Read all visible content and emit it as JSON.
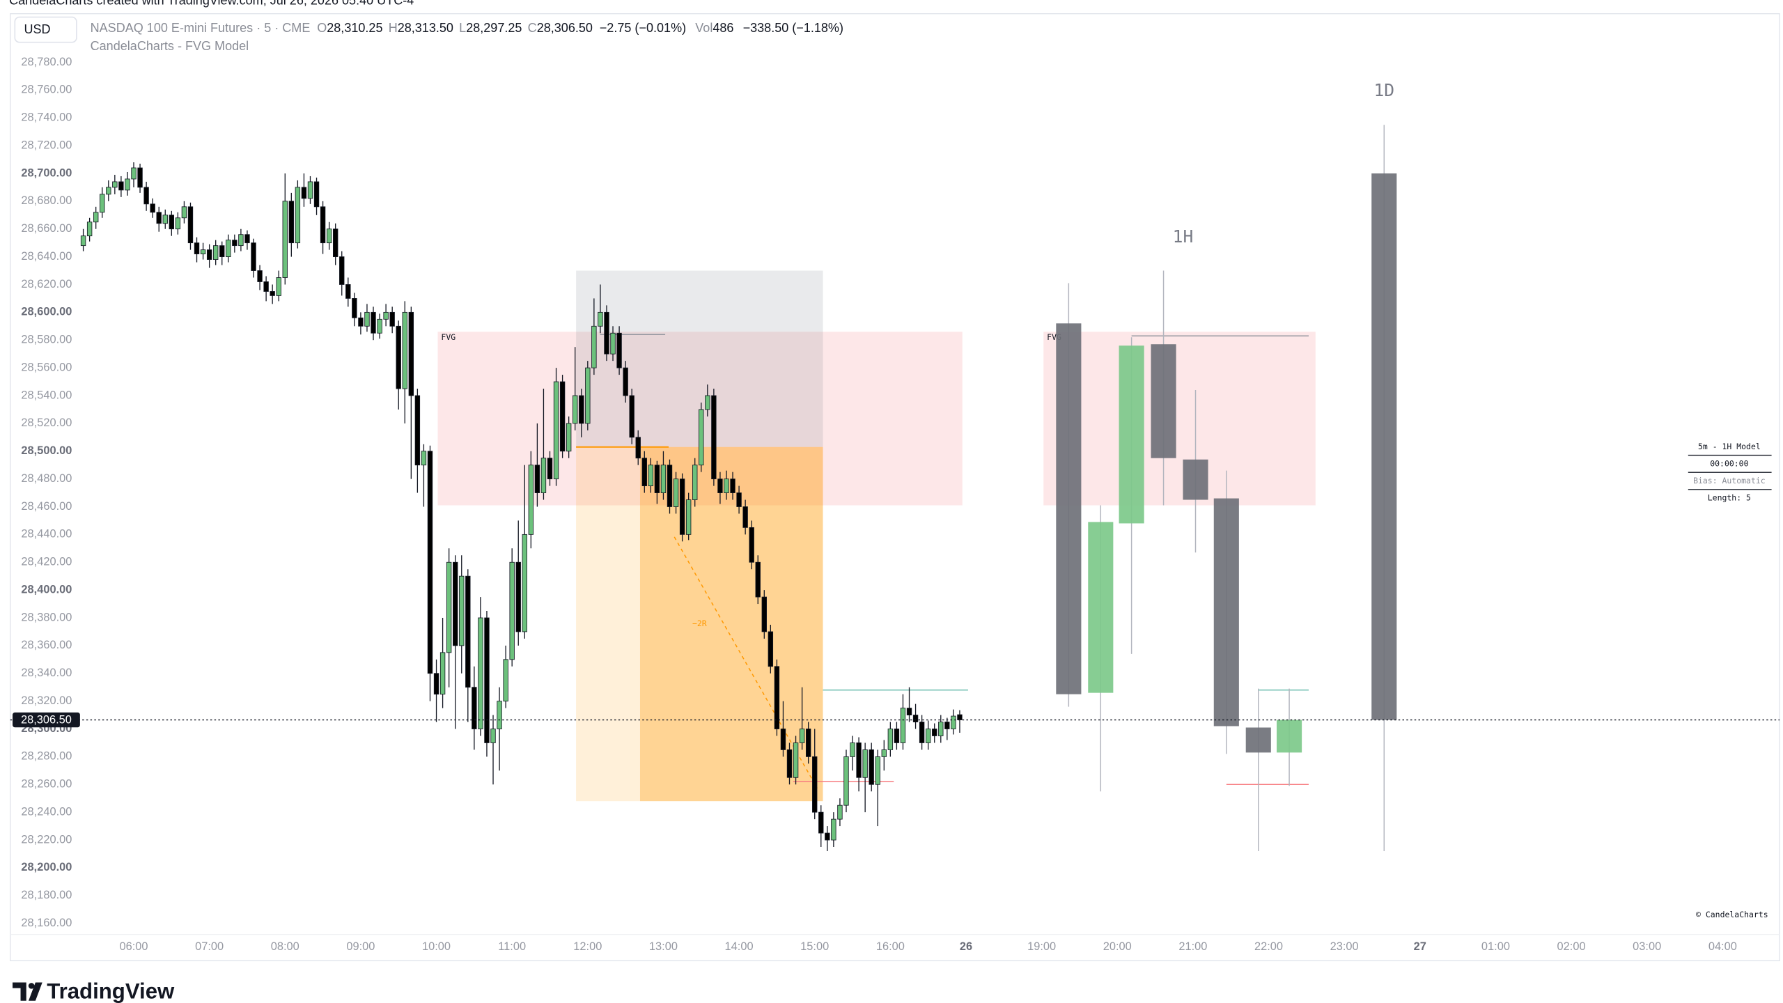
{
  "header": {
    "attribution": "CandelaCharts created with TradingView.com, Jul 26, 2026 05:40 UTC-4",
    "currency": "USD",
    "symbol": "NASDAQ 100 E-mini Futures · 5 · CME",
    "o_label": "O",
    "o_value": "28,310.25",
    "h_label": "H",
    "h_value": "28,313.50",
    "l_label": "L",
    "l_value": "28,297.25",
    "c_label": "C",
    "c_value": "28,306.50",
    "change": "−2.75 (−0.01%)",
    "vol_label": "Vol",
    "vol_value": "486",
    "vol_change": "−338.50 (−1.18%)",
    "indicator": "CandelaCharts - FVG Model"
  },
  "chart_data": {
    "type": "candlestick",
    "x": [
      "05:20",
      "05:25",
      "05:30",
      "05:35",
      "05:40",
      "05:45",
      "05:50",
      "05:55",
      "06:00",
      "06:05",
      "06:10",
      "06:15",
      "06:20",
      "06:25",
      "06:30",
      "06:35",
      "06:40",
      "06:45",
      "06:50",
      "06:55",
      "07:00",
      "07:05",
      "07:10",
      "07:15",
      "07:20",
      "07:25",
      "07:30",
      "07:35",
      "07:40",
      "07:45",
      "07:50",
      "07:55",
      "08:00",
      "08:05",
      "08:10",
      "08:15",
      "08:20",
      "08:25",
      "08:30",
      "08:35",
      "08:40",
      "08:45",
      "08:50",
      "08:55",
      "09:00",
      "09:05",
      "09:10",
      "09:15",
      "09:20",
      "09:25",
      "09:30",
      "09:35",
      "09:40",
      "09:45",
      "09:50",
      "09:55",
      "10:00",
      "10:05",
      "10:10",
      "10:15",
      "10:20",
      "10:25",
      "10:30",
      "10:35",
      "10:40",
      "10:45",
      "10:50",
      "10:55",
      "11:00",
      "11:05",
      "11:10",
      "11:15",
      "11:20",
      "11:25",
      "11:30",
      "11:35",
      "11:40",
      "11:45",
      "11:50",
      "11:55",
      "12:00",
      "12:05",
      "12:10",
      "12:15",
      "12:20",
      "12:25",
      "12:30",
      "12:35",
      "12:40",
      "12:45",
      "12:50",
      "12:55",
      "13:00",
      "13:05",
      "13:10",
      "13:15",
      "13:20",
      "13:25",
      "13:30",
      "13:35",
      "13:40",
      "13:45",
      "13:50",
      "13:55",
      "14:00",
      "14:05",
      "14:10",
      "14:15",
      "14:20",
      "14:25",
      "14:30",
      "14:35",
      "14:40",
      "14:45",
      "14:50",
      "14:55",
      "15:00",
      "15:05",
      "15:10",
      "15:15",
      "15:20",
      "15:25",
      "15:30",
      "15:35",
      "15:40",
      "15:45",
      "15:50",
      "15:55",
      "16:00",
      "16:05",
      "16:10",
      "16:15",
      "16:20",
      "16:25",
      "16:30",
      "16:35",
      "16:40",
      "16:45",
      "16:50",
      "16:55"
    ],
    "ohlc": [
      [
        28648,
        28660,
        28644,
        28655
      ],
      [
        28655,
        28668,
        28651,
        28665
      ],
      [
        28665,
        28676,
        28660,
        28672
      ],
      [
        28672,
        28690,
        28668,
        28685
      ],
      [
        28685,
        28695,
        28680,
        28690
      ],
      [
        28690,
        28699,
        28685,
        28694
      ],
      [
        28694,
        28698,
        28683,
        28688
      ],
      [
        28688,
        28701,
        28684,
        28696
      ],
      [
        28696,
        28708,
        28690,
        28704
      ],
      [
        28704,
        28707,
        28686,
        28690
      ],
      [
        28690,
        28694,
        28673,
        28678
      ],
      [
        28678,
        28682,
        28668,
        28672
      ],
      [
        28672,
        28676,
        28658,
        28664
      ],
      [
        28664,
        28674,
        28660,
        28670
      ],
      [
        28670,
        28673,
        28655,
        28660
      ],
      [
        28660,
        28672,
        28656,
        28668
      ],
      [
        28668,
        28680,
        28664,
        28676
      ],
      [
        28676,
        28679,
        28645,
        28650
      ],
      [
        28650,
        28654,
        28636,
        28642
      ],
      [
        28642,
        28650,
        28638,
        28645
      ],
      [
        28645,
        28649,
        28632,
        28638
      ],
      [
        28638,
        28652,
        28634,
        28648
      ],
      [
        28648,
        28651,
        28634,
        28640
      ],
      [
        28640,
        28656,
        28636,
        28652
      ],
      [
        28652,
        28656,
        28643,
        28648
      ],
      [
        28648,
        28660,
        28644,
        28656
      ],
      [
        28656,
        28659,
        28645,
        28650
      ],
      [
        28650,
        28653,
        28625,
        28630
      ],
      [
        28630,
        28634,
        28616,
        28622
      ],
      [
        28622,
        28626,
        28608,
        28615
      ],
      [
        28615,
        28620,
        28606,
        28612
      ],
      [
        28612,
        28630,
        28608,
        28625
      ],
      [
        28625,
        28700,
        28620,
        28680
      ],
      [
        28680,
        28686,
        28640,
        28650
      ],
      [
        28650,
        28695,
        28646,
        28690
      ],
      [
        28690,
        28700,
        28676,
        28682
      ],
      [
        28682,
        28698,
        28678,
        28694
      ],
      [
        28694,
        28697,
        28670,
        28676
      ],
      [
        28676,
        28680,
        28642,
        28650
      ],
      [
        28650,
        28665,
        28645,
        28660
      ],
      [
        28660,
        28664,
        28634,
        28640
      ],
      [
        28640,
        28644,
        28612,
        28620
      ],
      [
        28620,
        28625,
        28604,
        28610
      ],
      [
        28610,
        28614,
        28590,
        28596
      ],
      [
        28596,
        28600,
        28584,
        28590
      ],
      [
        28590,
        28606,
        28586,
        28600
      ],
      [
        28600,
        28604,
        28580,
        28585
      ],
      [
        28585,
        28599,
        28581,
        28595
      ],
      [
        28595,
        28606,
        28590,
        28600
      ],
      [
        28600,
        28604,
        28585,
        28590
      ],
      [
        28590,
        28594,
        28530,
        28545
      ],
      [
        28545,
        28608,
        28520,
        28600
      ],
      [
        28600,
        28604,
        28480,
        28540
      ],
      [
        28540,
        28545,
        28470,
        28490
      ],
      [
        28490,
        28505,
        28460,
        28500
      ],
      [
        28500,
        28504,
        28320,
        28340
      ],
      [
        28340,
        28350,
        28305,
        28325
      ],
      [
        28325,
        28380,
        28315,
        28355
      ],
      [
        28355,
        28430,
        28330,
        28420
      ],
      [
        28420,
        28425,
        28300,
        28360
      ],
      [
        28360,
        28425,
        28340,
        28410
      ],
      [
        28410,
        28415,
        28305,
        28330
      ],
      [
        28330,
        28345,
        28285,
        28300
      ],
      [
        28300,
        28395,
        28295,
        28380
      ],
      [
        28380,
        28385,
        28280,
        28290
      ],
      [
        28290,
        28310,
        28260,
        28300
      ],
      [
        28300,
        28330,
        28270,
        28320
      ],
      [
        28320,
        28360,
        28315,
        28350
      ],
      [
        28350,
        28430,
        28345,
        28420
      ],
      [
        28420,
        28450,
        28360,
        28370
      ],
      [
        28370,
        28490,
        28365,
        28440
      ],
      [
        28440,
        28500,
        28430,
        28490
      ],
      [
        28490,
        28520,
        28460,
        28470
      ],
      [
        28470,
        28545,
        28465,
        28495
      ],
      [
        28495,
        28500,
        28475,
        28480
      ],
      [
        28480,
        28560,
        28475,
        28550
      ],
      [
        28550,
        28555,
        28495,
        28500
      ],
      [
        28500,
        28525,
        28495,
        28520
      ],
      [
        28520,
        28575,
        28515,
        28540
      ],
      [
        28540,
        28545,
        28510,
        28520
      ],
      [
        28520,
        28565,
        28515,
        28560
      ],
      [
        28560,
        28610,
        28555,
        28590
      ],
      [
        28590,
        28620,
        28585,
        28600
      ],
      [
        28600,
        28605,
        28565,
        28570
      ],
      [
        28570,
        28590,
        28565,
        28585
      ],
      [
        28585,
        28590,
        28555,
        28560
      ],
      [
        28560,
        28565,
        28535,
        28540
      ],
      [
        28540,
        28545,
        28505,
        28510
      ],
      [
        28510,
        28515,
        28490,
        28495
      ],
      [
        28495,
        28500,
        28470,
        28475
      ],
      [
        28475,
        28495,
        28470,
        28490
      ],
      [
        28490,
        28493,
        28462,
        28470
      ],
      [
        28470,
        28500,
        28465,
        28490
      ],
      [
        28490,
        28494,
        28455,
        28460
      ],
      [
        28460,
        28485,
        28455,
        28480
      ],
      [
        28480,
        28484,
        28435,
        28440
      ],
      [
        28440,
        28470,
        28436,
        28465
      ],
      [
        28465,
        28495,
        28460,
        28490
      ],
      [
        28490,
        28535,
        28485,
        28530
      ],
      [
        28530,
        28548,
        28525,
        28540
      ],
      [
        28540,
        28545,
        28475,
        28480
      ],
      [
        28480,
        28485,
        28462,
        28470
      ],
      [
        28470,
        28486,
        28465,
        28480
      ],
      [
        28480,
        28485,
        28465,
        28470
      ],
      [
        28470,
        28475,
        28455,
        28460
      ],
      [
        28460,
        28465,
        28440,
        28445
      ],
      [
        28445,
        28450,
        28415,
        28420
      ],
      [
        28420,
        28425,
        28390,
        28395
      ],
      [
        28395,
        28400,
        28365,
        28370
      ],
      [
        28370,
        28375,
        28340,
        28345
      ],
      [
        28345,
        28350,
        28295,
        28300
      ],
      [
        28300,
        28320,
        28280,
        28285
      ],
      [
        28285,
        28290,
        28260,
        28265
      ],
      [
        28265,
        28295,
        28260,
        28290
      ],
      [
        28290,
        28330,
        28285,
        28300
      ],
      [
        28300,
        28305,
        28275,
        28280
      ],
      [
        28280,
        28300,
        28235,
        28240
      ],
      [
        28240,
        28245,
        28215,
        28225
      ],
      [
        28225,
        28230,
        28212,
        28220
      ],
      [
        28220,
        28240,
        28215,
        28235
      ],
      [
        28235,
        28250,
        28230,
        28245
      ],
      [
        28245,
        28285,
        28240,
        28280
      ],
      [
        28280,
        28295,
        28270,
        28290
      ],
      [
        28290,
        28294,
        28255,
        28265
      ],
      [
        28265,
        28290,
        28240,
        28285
      ],
      [
        28285,
        28290,
        28255,
        28260
      ],
      [
        28260,
        28285,
        28230,
        28280
      ],
      [
        28280,
        28292,
        28270,
        28285
      ],
      [
        28285,
        28305,
        28280,
        28300
      ],
      [
        28300,
        28305,
        28285,
        28290
      ],
      [
        28290,
        28325,
        28285,
        28315
      ],
      [
        28315,
        28330,
        28305,
        28310
      ],
      [
        28310,
        28318,
        28300,
        28305
      ],
      [
        28305,
        28310,
        28285,
        28290
      ],
      [
        28290,
        28306,
        28285,
        28300
      ],
      [
        28300,
        28304,
        28290,
        28295
      ],
      [
        28295,
        28310,
        28290,
        28305
      ],
      [
        28305,
        28308,
        28292,
        28300
      ],
      [
        28300,
        28314,
        28296,
        28309.25
      ],
      [
        28310.25,
        28313.5,
        28297.25,
        28306.5
      ]
    ],
    "up_color": "#6cc17c",
    "down_color": "#000000",
    "ylim": [
      28152,
      28815
    ],
    "yticks": [
      {
        "value": 28780,
        "label": "28,780.00"
      },
      {
        "value": 28760,
        "label": "28,760.00"
      },
      {
        "value": 28740,
        "label": "28,740.00"
      },
      {
        "value": 28720,
        "label": "28,720.00"
      },
      {
        "value": 28700,
        "label": "28,700.00"
      },
      {
        "value": 28680,
        "label": "28,680.00"
      },
      {
        "value": 28660,
        "label": "28,660.00"
      },
      {
        "value": 28640,
        "label": "28,640.00"
      },
      {
        "value": 28620,
        "label": "28,620.00"
      },
      {
        "value": 28600,
        "label": "28,600.00"
      },
      {
        "value": 28580,
        "label": "28,580.00"
      },
      {
        "value": 28560,
        "label": "28,560.00"
      },
      {
        "value": 28540,
        "label": "28,540.00"
      },
      {
        "value": 28520,
        "label": "28,520.00"
      },
      {
        "value": 28500,
        "label": "28,500.00"
      },
      {
        "value": 28480,
        "label": "28,480.00"
      },
      {
        "value": 28460,
        "label": "28,460.00"
      },
      {
        "value": 28440,
        "label": "28,440.00"
      },
      {
        "value": 28420,
        "label": "28,420.00"
      },
      {
        "value": 28400,
        "label": "28,400.00"
      },
      {
        "value": 28380,
        "label": "28,380.00"
      },
      {
        "value": 28360,
        "label": "28,360.00"
      },
      {
        "value": 28340,
        "label": "28,340.00"
      },
      {
        "value": 28320,
        "label": "28,320.00"
      },
      {
        "value": 28300,
        "label": "28,300.00"
      },
      {
        "value": 28280,
        "label": "28,280.00"
      },
      {
        "value": 28260,
        "label": "28,260.00"
      },
      {
        "value": 28240,
        "label": "28,240.00"
      },
      {
        "value": 28220,
        "label": "28,220.00"
      },
      {
        "value": 28200,
        "label": "28,200.00"
      },
      {
        "value": 28180,
        "label": "28,180.00"
      },
      {
        "value": 28160,
        "label": "28,160.00"
      }
    ],
    "xticks": [
      "06:00",
      "07:00",
      "08:00",
      "09:00",
      "10:00",
      "11:00",
      "12:00",
      "13:00",
      "14:00",
      "15:00",
      "16:00",
      "26",
      "19:00",
      "20:00",
      "21:00",
      "22:00",
      "23:00",
      "27",
      "01:00",
      "02:00",
      "03:00",
      "04:00"
    ],
    "last_price": {
      "value": 28306.5,
      "label": "28,306.50"
    },
    "fvg_zones": [
      {
        "label": "FVG",
        "top": 28586,
        "bottom": 28461
      },
      {
        "label": "FVG",
        "top": 28586,
        "bottom": 28461
      }
    ],
    "zone_color": "#f23645",
    "position": {
      "label": "−2R",
      "stop": 28630,
      "entry": 28503,
      "target": 28248,
      "color": "#ff9800"
    },
    "levels": [
      {
        "value": 28584,
        "color": "#9598a1"
      },
      {
        "value": 28328,
        "color": "#5fb8a8"
      },
      {
        "value": 28262,
        "color": "#f77c80"
      },
      {
        "value": 28583,
        "color": "#9598a1"
      },
      {
        "value": 28328,
        "color": "#5fb8a8"
      },
      {
        "value": 28260,
        "color": "#f77c80"
      }
    ],
    "htf": [
      {
        "label": "1H",
        "candles": [
          [
            28592,
            28621,
            28316,
            28325
          ],
          [
            28326,
            28461,
            28255,
            28449
          ],
          [
            28448,
            28582,
            28354,
            28576
          ],
          [
            28577,
            28630,
            28461,
            28495
          ],
          [
            28494,
            28544,
            28427,
            28465
          ],
          [
            28466,
            28486,
            28282,
            28302
          ],
          [
            28301,
            28329,
            28212,
            28283
          ],
          [
            28283,
            28329,
            28259,
            28306.5
          ]
        ]
      },
      {
        "label": "1D",
        "candles": [
          [
            28700,
            28735,
            28212,
            28306.5
          ]
        ]
      }
    ],
    "htf_up_color": "#7dc98a",
    "htf_down_color": "#6f7178"
  },
  "model_table": {
    "title": "5m - 1H Model",
    "timer": "00:00:00",
    "bias": "Bias: Automatic",
    "length": "Length: 5"
  },
  "watermark": "© CandelaCharts",
  "brand": "TradingView"
}
